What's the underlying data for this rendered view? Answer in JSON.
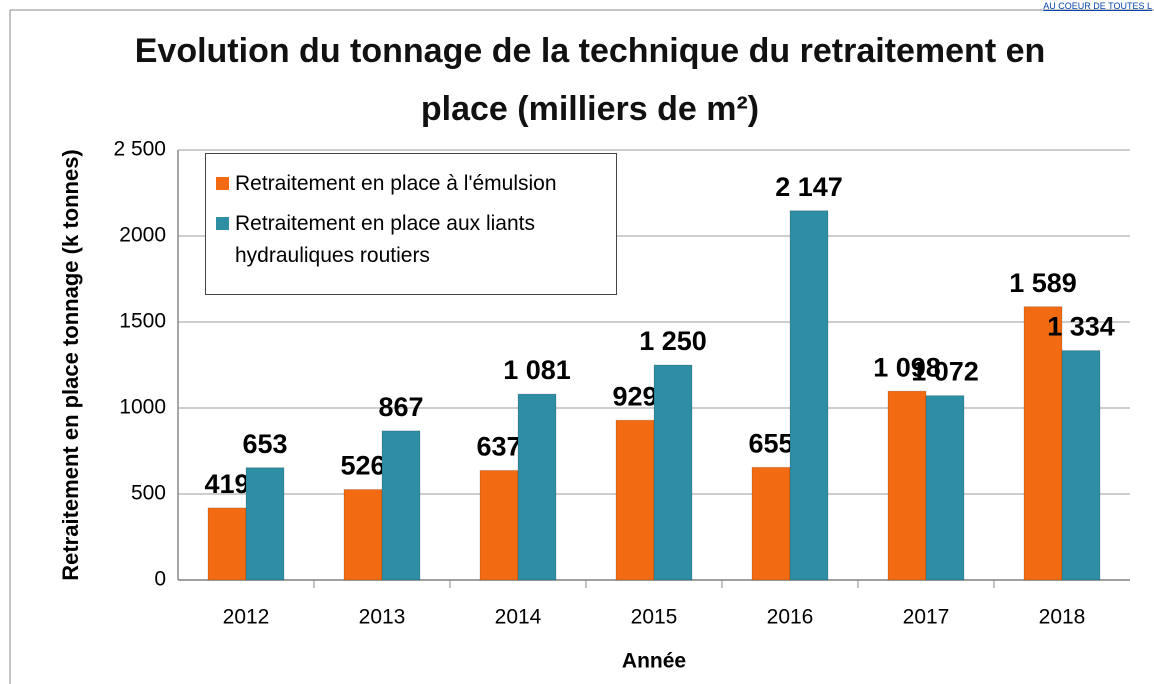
{
  "chart_data": {
    "type": "bar",
    "title": "Evolution du tonnage de la technique du retraitement en place (milliers de m²)",
    "annotation": "AU COEUR DE TOUTES L",
    "x_label": "Année",
    "y_label": "Retraitement en place tonnage (k tonnes)",
    "categories": [
      "2012",
      "2013",
      "2014",
      "2015",
      "2016",
      "2017",
      "2018"
    ],
    "series": [
      {
        "name": "Retraitement en place à l'émulsion",
        "color": "#f26b12",
        "values": [
          419,
          526,
          637,
          929,
          655,
          1098,
          1589
        ],
        "value_labels": [
          "419",
          "526",
          "637",
          "929",
          "655",
          "1 098",
          "1 589"
        ]
      },
      {
        "name": "Retraitement en place aux liants hydrauliques routiers",
        "color": "#2e8ea3",
        "values": [
          653,
          867,
          1081,
          1250,
          2147,
          1072,
          1334
        ],
        "value_labels": [
          "653",
          "867",
          "1 081",
          "1 250",
          "2 147",
          "1 072",
          "1 334"
        ]
      }
    ],
    "ylim": [
      0,
      2500
    ],
    "yticks": [
      0,
      500,
      1000,
      1500,
      2000,
      {
        "value": 2500,
        "label": "2 500"
      }
    ],
    "grid": true,
    "legend": "top-left"
  }
}
